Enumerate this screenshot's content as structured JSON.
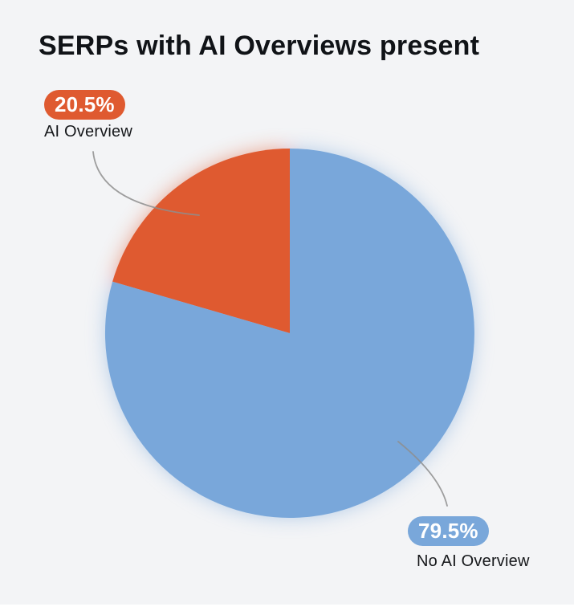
{
  "title": "SERPs with AI Overviews present",
  "theme": {
    "card_background": "#f3f4f6",
    "page_background": "#ffffff",
    "title_color": "#101317",
    "label_color": "#16181b",
    "leader_line_color": "#8e8e8e",
    "badge_text_color": "#ffffff"
  },
  "chart_data": {
    "type": "pie",
    "title": "SERPs with AI Overviews present",
    "start_angle": "12-oclock",
    "direction": "counterclockwise",
    "legend_position": "callout-labels",
    "grid": false,
    "slices": [
      {
        "label": "AI Overview",
        "value": 20.5,
        "display_value": "20.5%",
        "color": "#df5a30"
      },
      {
        "label": "No AI Overview",
        "value": 79.5,
        "display_value": "79.5%",
        "color": "#79a7da"
      }
    ]
  }
}
